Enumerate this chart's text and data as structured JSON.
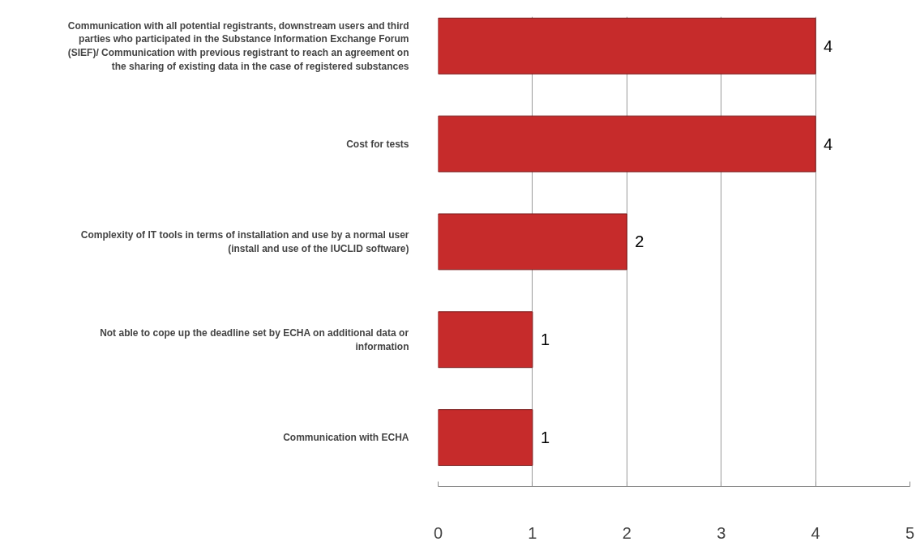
{
  "chart_data": {
    "type": "bar",
    "orientation": "horizontal",
    "categories": [
      "Communication with all potential registrants, downstream users and third parties who participated in the Substance Information Exchange Forum (SIEF)/ Communication with previous registrant to reach an agreement on the sharing of existing data in the case of registered substances",
      "Cost for tests",
      "Complexity of IT tools in terms of installation and use by a normal user (install and use of the IUCLID software)",
      "Not able to cope up the deadline set by ECHA on additional data or information",
      "Communication with ECHA"
    ],
    "values": [
      4,
      4,
      2,
      1,
      1
    ],
    "color": "#c62b2b",
    "data_labels": true,
    "xlim": [
      0,
      5
    ],
    "xticks": [
      0,
      1,
      2,
      3,
      4,
      5
    ],
    "grid": "x"
  }
}
